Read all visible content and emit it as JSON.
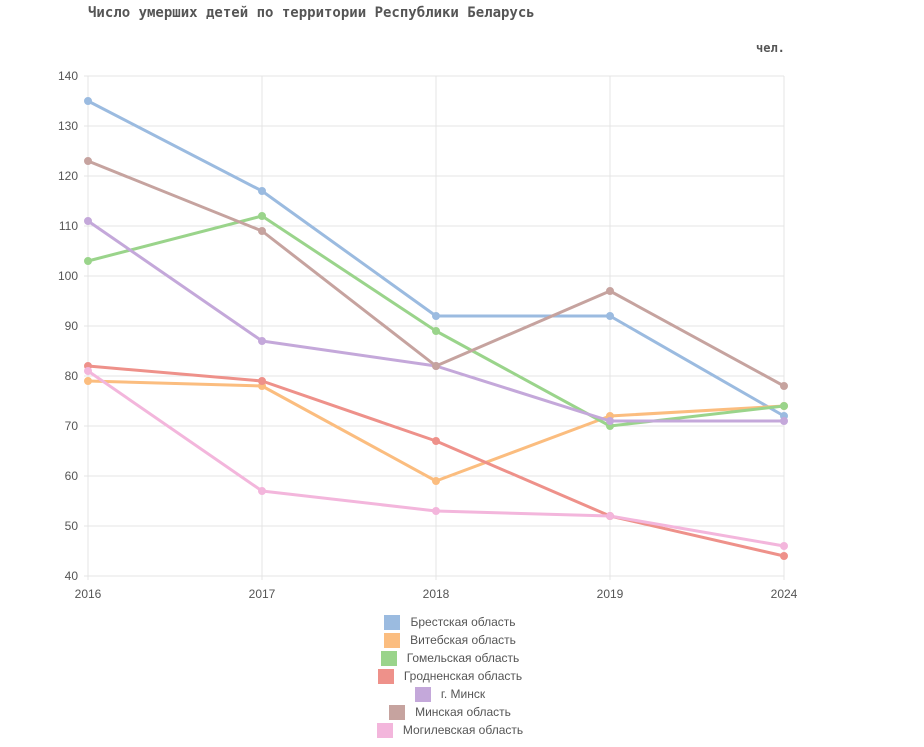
{
  "chart_data": {
    "type": "line",
    "title": "Число умерших детей по территории Республики Беларусь",
    "unit": "чел.",
    "x": [
      "2016",
      "2017",
      "2018",
      "2019",
      "2024"
    ],
    "ylim": [
      40,
      140
    ],
    "yticks": [
      "40",
      "50",
      "60",
      "70",
      "80",
      "90",
      "100",
      "110",
      "120",
      "130",
      "140"
    ],
    "grid": true,
    "legend_position": "bottom",
    "series": [
      {
        "name": "Брестская область",
        "color": "#9bbbe0",
        "values": [
          135,
          117,
          92,
          92,
          72
        ]
      },
      {
        "name": "Витебская область",
        "color": "#fbbd7f",
        "values": [
          79,
          78,
          59,
          72,
          74
        ]
      },
      {
        "name": "Гомельская область",
        "color": "#9ad48b",
        "values": [
          103,
          112,
          89,
          70,
          74
        ]
      },
      {
        "name": "Гродненская область",
        "color": "#ee918a",
        "values": [
          82,
          79,
          67,
          52,
          44
        ]
      },
      {
        "name": "г. Минск",
        "color": "#c4a8da",
        "values": [
          111,
          87,
          82,
          71,
          71
        ]
      },
      {
        "name": "Минская область",
        "color": "#c6a39f",
        "values": [
          123,
          109,
          82,
          97,
          78
        ]
      },
      {
        "name": "Могилевская область",
        "color": "#f3b6dc",
        "values": [
          81,
          57,
          53,
          52,
          46
        ]
      }
    ]
  }
}
